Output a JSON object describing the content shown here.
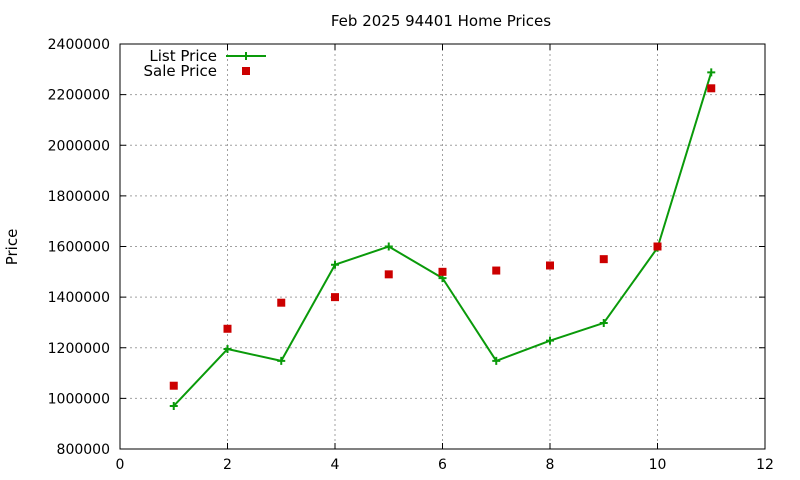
{
  "chart_data": {
    "type": "line",
    "title": "Feb 2025 94401 Home Prices",
    "xlabel": "",
    "ylabel": "Price",
    "xlim": [
      0,
      12
    ],
    "ylim": [
      800000,
      2400000
    ],
    "xticks": [
      0,
      2,
      4,
      6,
      8,
      10,
      12
    ],
    "yticks": [
      800000,
      1000000,
      1200000,
      1400000,
      1600000,
      1800000,
      2000000,
      2200000,
      2400000
    ],
    "x_tick_labels": [
      "0",
      "2",
      "4",
      "6",
      "8",
      "10",
      "12"
    ],
    "y_tick_labels": [
      "800000",
      "1000000",
      "1200000",
      "1400000",
      "1600000",
      "1800000",
      "2000000",
      "2200000",
      "2400000"
    ],
    "grid": true,
    "legend_position": "top-left",
    "series": [
      {
        "name": "List Price",
        "style": "line+plus",
        "color": "#0a9a0a",
        "x": [
          1,
          2,
          3,
          4,
          5,
          6,
          7,
          8,
          9,
          10,
          11
        ],
        "y": [
          970000,
          1195000,
          1148000,
          1528000,
          1600000,
          1475000,
          1148000,
          1228000,
          1298000,
          1595000,
          2288000
        ]
      },
      {
        "name": "Sale Price",
        "style": "square",
        "color": "#cc0000",
        "x": [
          1,
          2,
          3,
          4,
          5,
          6,
          7,
          8,
          9,
          10,
          11
        ],
        "y": [
          1050000,
          1275000,
          1378000,
          1400000,
          1490000,
          1500000,
          1505000,
          1525000,
          1550000,
          1600000,
          2225000
        ]
      }
    ]
  }
}
